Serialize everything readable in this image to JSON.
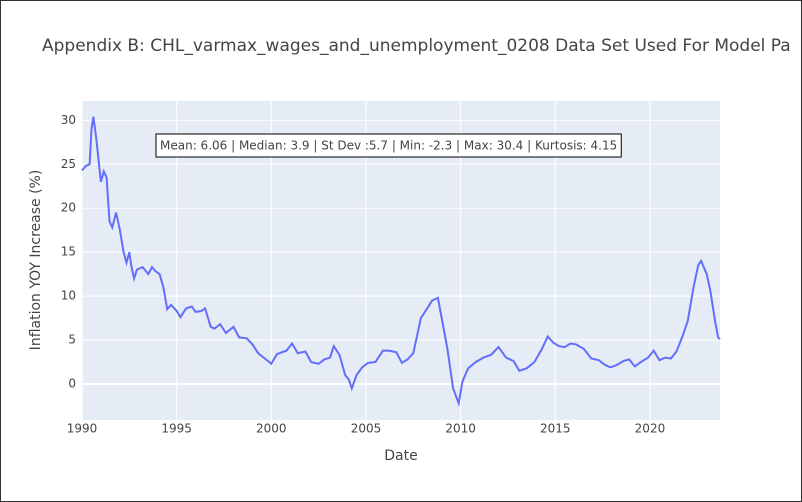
{
  "chart_data": {
    "type": "line",
    "title": "Appendix B: CHL_varmax_wages_and_unemployment_0208 Data Set Used For Model Pa",
    "annotation": "Mean: 6.06 | Median: 3.9 | St Dev :5.7 | Min: -2.3 | Max: 30.4 | Kurtosis: 4.15",
    "x_label": "Date",
    "y_label": "Inflation YOY Increase (%)",
    "xlim": [
      1990,
      2023.7
    ],
    "xticks": [
      1990,
      1995,
      2000,
      2005,
      2010,
      2015,
      2020
    ],
    "ylim": [
      -4.1,
      32.2
    ],
    "yticks": [
      0,
      5,
      10,
      15,
      20,
      25,
      30
    ],
    "grid": true,
    "series": [
      {
        "color": "#636efa",
        "x": [
          1990.0,
          1990.2,
          1990.4,
          1990.5,
          1990.6,
          1990.75,
          1990.9,
          1991.0,
          1991.15,
          1991.3,
          1991.45,
          1991.6,
          1991.8,
          1992.0,
          1992.2,
          1992.35,
          1992.5,
          1992.6,
          1992.75,
          1992.9,
          1993.2,
          1993.5,
          1993.7,
          1993.9,
          1994.1,
          1994.3,
          1994.5,
          1994.7,
          1995.0,
          1995.2,
          1995.5,
          1995.8,
          1996.0,
          1996.3,
          1996.5,
          1996.8,
          1997.0,
          1997.3,
          1997.6,
          1998.0,
          1998.3,
          1998.7,
          1999.0,
          1999.3,
          1999.6,
          2000.0,
          2000.3,
          2000.8,
          2001.1,
          2001.4,
          2001.8,
          2002.1,
          2002.5,
          2002.8,
          2003.1,
          2003.3,
          2003.6,
          2003.9,
          2004.1,
          2004.25,
          2004.5,
          2004.8,
          2005.1,
          2005.5,
          2005.9,
          2006.2,
          2006.6,
          2006.9,
          2007.2,
          2007.5,
          2007.9,
          2008.2,
          2008.5,
          2008.8,
          2009.0,
          2009.3,
          2009.6,
          2009.9,
          2010.1,
          2010.4,
          2010.8,
          2011.2,
          2011.6,
          2012.0,
          2012.4,
          2012.8,
          2013.1,
          2013.5,
          2013.9,
          2014.3,
          2014.6,
          2014.9,
          2015.2,
          2015.5,
          2015.8,
          2016.1,
          2016.5,
          2016.9,
          2017.3,
          2017.6,
          2017.9,
          2018.2,
          2018.6,
          2018.9,
          2019.2,
          2019.6,
          2019.9,
          2020.2,
          2020.5,
          2020.8,
          2021.1,
          2021.4,
          2021.7,
          2022.0,
          2022.3,
          2022.55,
          2022.7,
          2023.0,
          2023.2,
          2023.45,
          2023.6,
          2023.7
        ],
        "values": [
          24.3,
          24.8,
          25,
          29,
          30.4,
          28,
          25,
          23,
          24.2,
          23.5,
          18.5,
          17.8,
          19.5,
          17.5,
          15,
          13.8,
          15,
          13.5,
          12,
          13,
          13.3,
          12.5,
          13.3,
          12.8,
          12.5,
          11,
          8.5,
          9,
          8.3,
          7.6,
          8.6,
          8.8,
          8.2,
          8.3,
          8.6,
          6.5,
          6.3,
          6.8,
          5.8,
          6.5,
          5.3,
          5.2,
          4.5,
          3.5,
          3.0,
          2.3,
          3.4,
          3.8,
          4.6,
          3.5,
          3.7,
          2.5,
          2.3,
          2.8,
          3.0,
          4.3,
          3.3,
          1.0,
          0.5,
          -0.5,
          1.0,
          1.9,
          2.4,
          2.5,
          3.8,
          3.8,
          3.6,
          2.4,
          2.8,
          3.5,
          7.5,
          8.5,
          9.5,
          9.8,
          7.5,
          4,
          -0.5,
          -2.2,
          0.3,
          1.8,
          2.5,
          3.0,
          3.3,
          4.2,
          3.0,
          2.6,
          1.5,
          1.8,
          2.5,
          4.0,
          5.4,
          4.7,
          4.3,
          4.2,
          4.6,
          4.5,
          4.0,
          2.9,
          2.7,
          2.2,
          1.9,
          2.1,
          2.6,
          2.8,
          2.0,
          2.6,
          3.0,
          3.8,
          2.7,
          3.0,
          2.9,
          3.7,
          5.3,
          7.2,
          11,
          13.5,
          14,
          12.5,
          10.5,
          7,
          5.3,
          5.1
        ]
      }
    ]
  }
}
